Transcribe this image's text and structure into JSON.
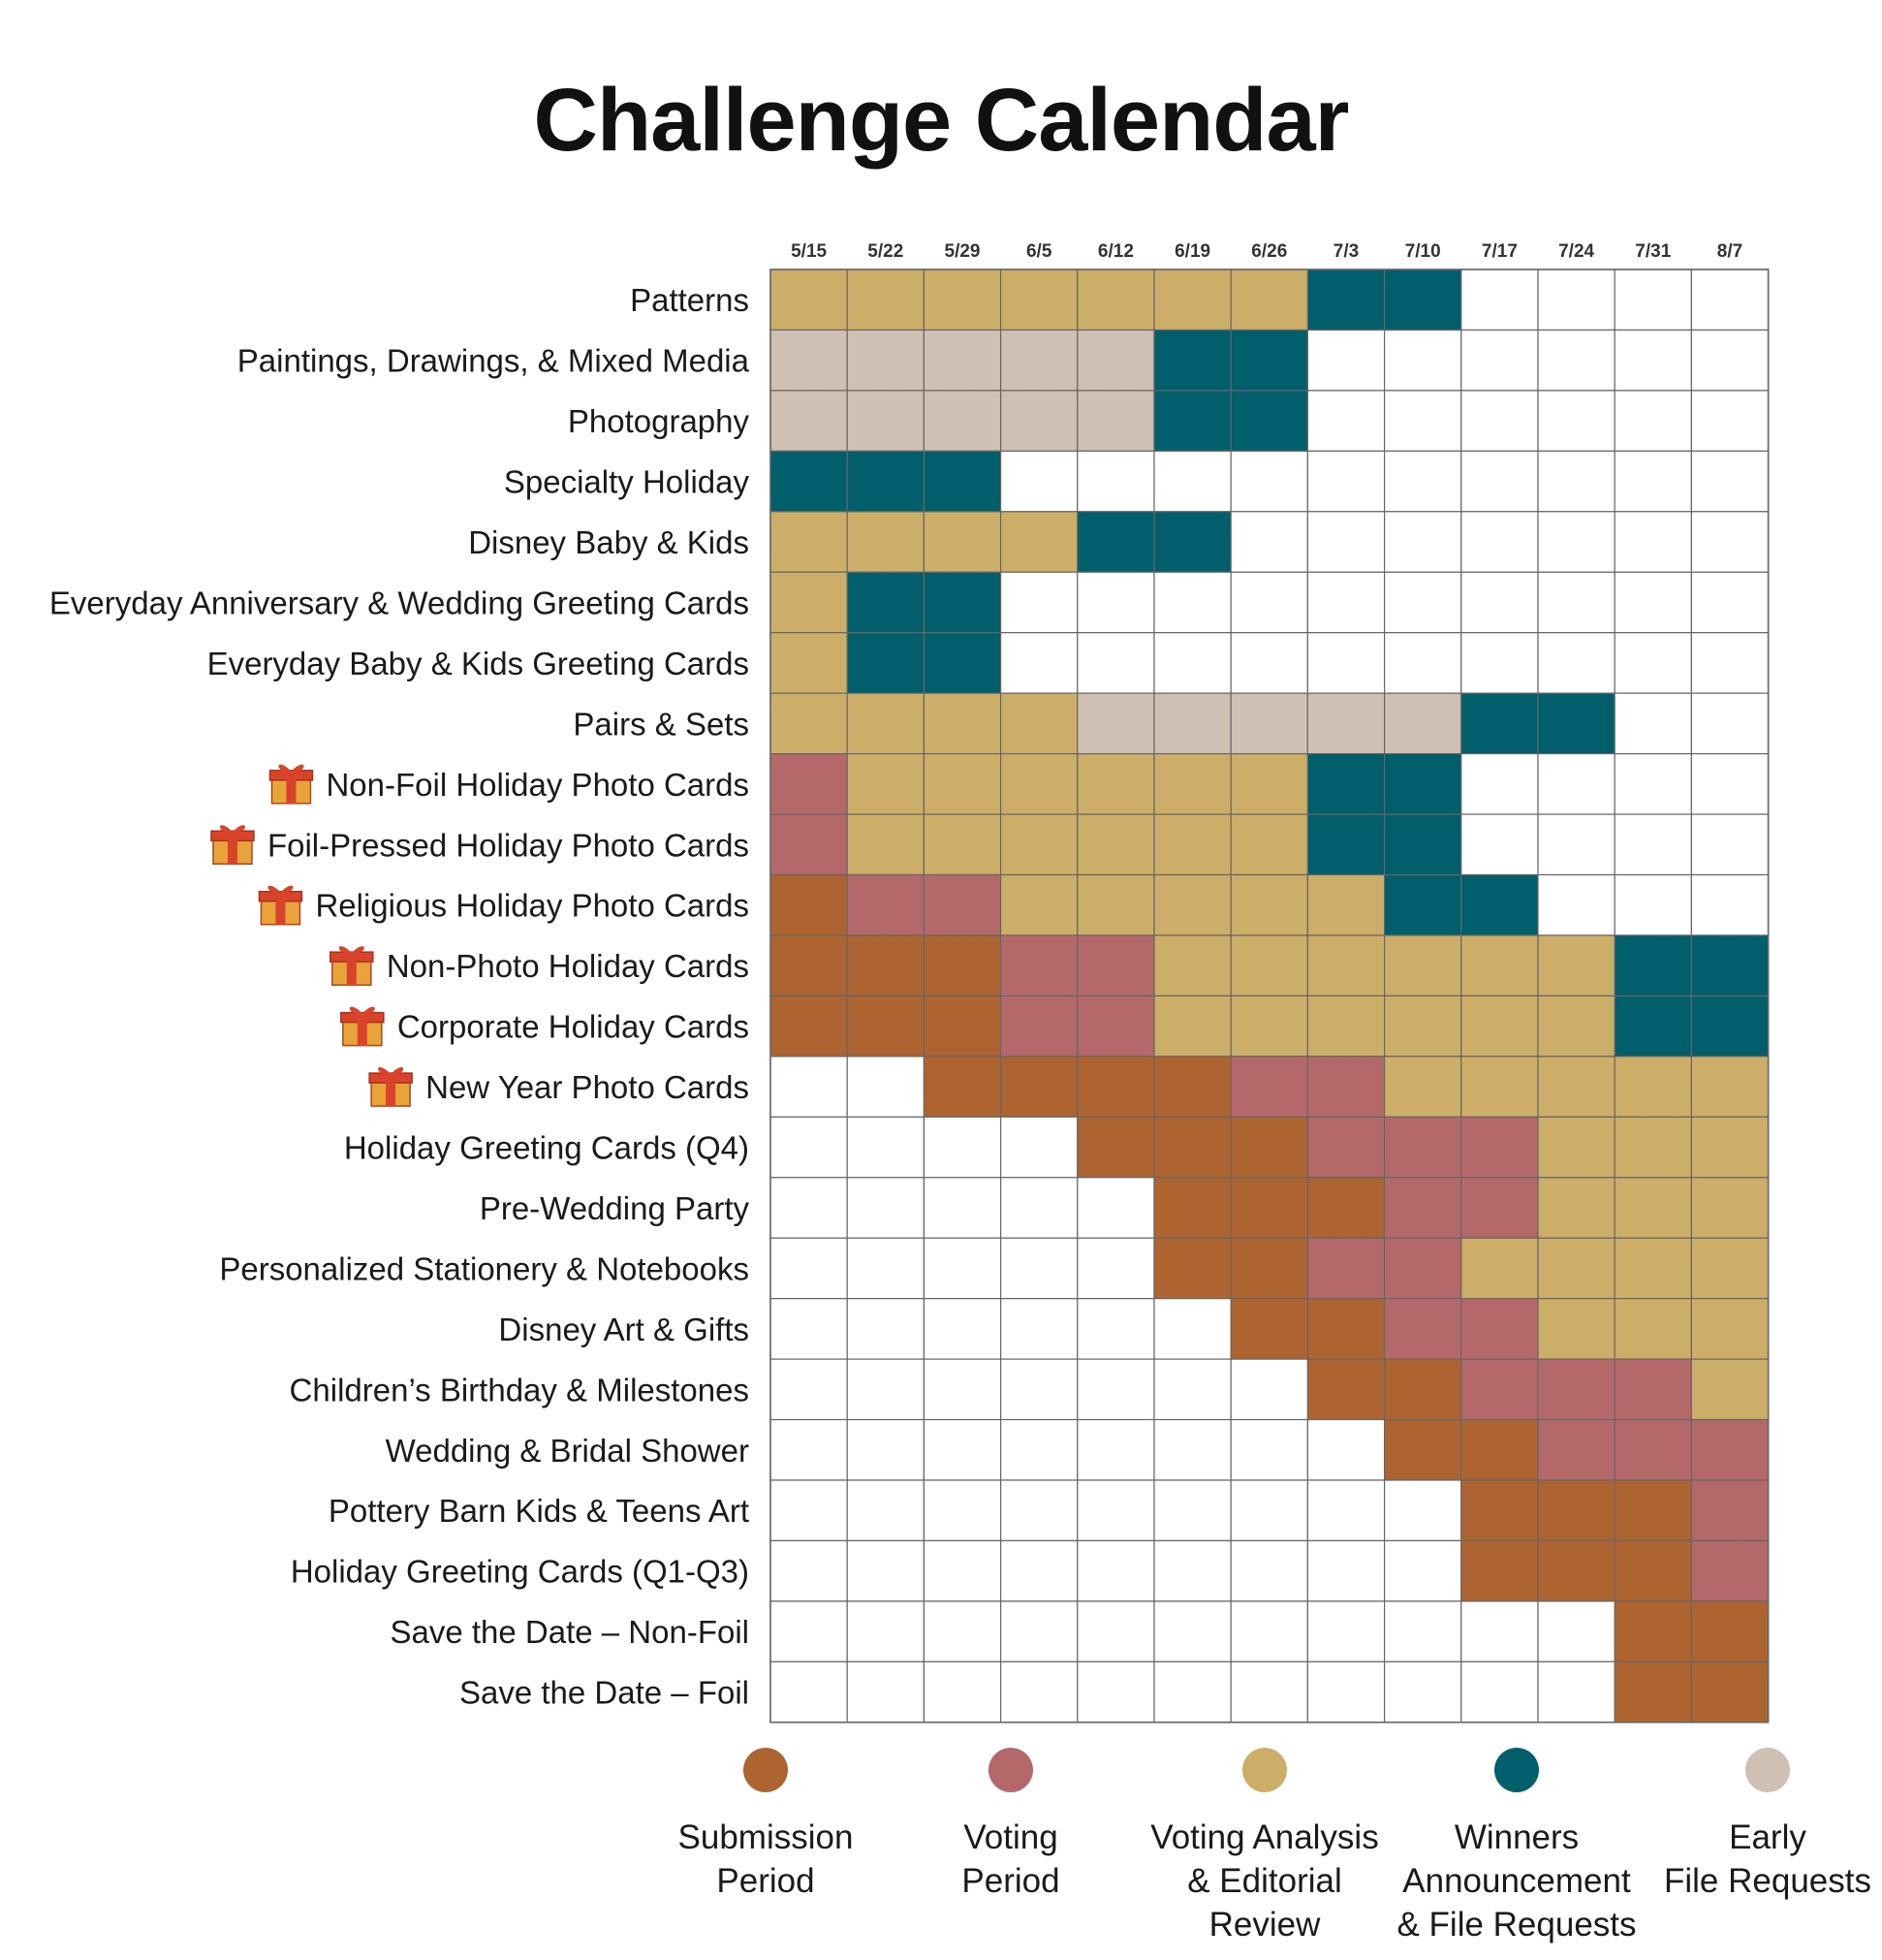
{
  "title": "Challenge Calendar",
  "colors": {
    "submission": "#AD6431",
    "voting": "#B5686A",
    "analysis": "#CDAE68",
    "winners": "#005F6B",
    "early": "#D0C0B3",
    "empty": "#FFFFFF",
    "gridline": "#666666"
  },
  "chart_data": {
    "type": "table",
    "title": "Challenge Calendar",
    "columns": [
      "5/15",
      "5/22",
      "5/29",
      "6/5",
      "6/12",
      "6/19",
      "6/26",
      "7/3",
      "7/10",
      "7/17",
      "7/24",
      "7/31",
      "8/7"
    ],
    "legend": [
      {
        "key": "S",
        "label": "Submission\nPeriod",
        "color": "#AD6431"
      },
      {
        "key": "V",
        "label": "Voting\nPeriod",
        "color": "#B5686A"
      },
      {
        "key": "A",
        "label": "Voting Analysis\n& Editorial\nReview",
        "color": "#CDAE68"
      },
      {
        "key": "W",
        "label": "Winners\nAnnouncement\n& File Requests",
        "color": "#005F6B"
      },
      {
        "key": "E",
        "label": "Early\nFile Requests",
        "color": "#D0C0B3"
      }
    ],
    "legend_placement": "bottom",
    "rows": [
      {
        "label": "Patterns",
        "icon": "",
        "cells": "AAAAAAAWW----"
      },
      {
        "label": "Paintings, Drawings, & Mixed Media",
        "icon": "",
        "cells": "EEEEEWW------"
      },
      {
        "label": "Photography",
        "icon": "",
        "cells": "EEEEEWW------"
      },
      {
        "label": "Specialty Holiday",
        "icon": "",
        "cells": "WWW----------"
      },
      {
        "label": "Disney Baby & Kids",
        "icon": "",
        "cells": "AAAAWW-------"
      },
      {
        "label": "Everyday Anniversary & Wedding Greeting Cards",
        "icon": "",
        "cells": "AWW----------"
      },
      {
        "label": "Everyday Baby & Kids Greeting Cards",
        "icon": "",
        "cells": "AWW----------"
      },
      {
        "label": "Pairs & Sets",
        "icon": "",
        "cells": "AAAAEEEEEWW--"
      },
      {
        "label": "Non-Foil Holiday Photo Cards",
        "icon": "gift-icon",
        "cells": "VAAAAAAWW----"
      },
      {
        "label": "Foil-Pressed Holiday Photo Cards",
        "icon": "gift-icon",
        "cells": "VAAAAAAWW----"
      },
      {
        "label": "Religious Holiday Photo Cards",
        "icon": "gift-icon",
        "cells": "SVVAAAAAWW---"
      },
      {
        "label": "Non-Photo Holiday Cards",
        "icon": "gift-icon",
        "cells": "SSSVVAAAAAAWW"
      },
      {
        "label": "Corporate Holiday Cards",
        "icon": "gift-icon",
        "cells": "SSSVVAAAAAAWW"
      },
      {
        "label": "New Year Photo Cards",
        "icon": "gift-icon",
        "cells": "--SSSSVVAAAAA"
      },
      {
        "label": "Holiday Greeting Cards (Q4)",
        "icon": "",
        "cells": "----SSSVVVAAA"
      },
      {
        "label": "Pre-Wedding Party",
        "icon": "",
        "cells": "-----SSSVVAAA"
      },
      {
        "label": "Personalized Stationery & Notebooks",
        "icon": "",
        "cells": "-----SSVVAAAA"
      },
      {
        "label": "Disney Art & Gifts",
        "icon": "",
        "cells": "------SSVVAAA"
      },
      {
        "label": "Children’s Birthday & Milestones",
        "icon": "",
        "cells": "-------SSVVVA"
      },
      {
        "label": "Wedding & Bridal Shower",
        "icon": "",
        "cells": "--------SSVVV"
      },
      {
        "label": "Pottery Barn Kids & Teens Art",
        "icon": "",
        "cells": "---------SSSV"
      },
      {
        "label": "Holiday Greeting Cards (Q1-Q3)",
        "icon": "",
        "cells": "---------SSSV"
      },
      {
        "label": "Save the Date – Non-Foil",
        "icon": "",
        "cells": "-----------SS"
      },
      {
        "label": "Save the Date – Foil",
        "icon": "",
        "cells": "-----------SS"
      }
    ]
  }
}
